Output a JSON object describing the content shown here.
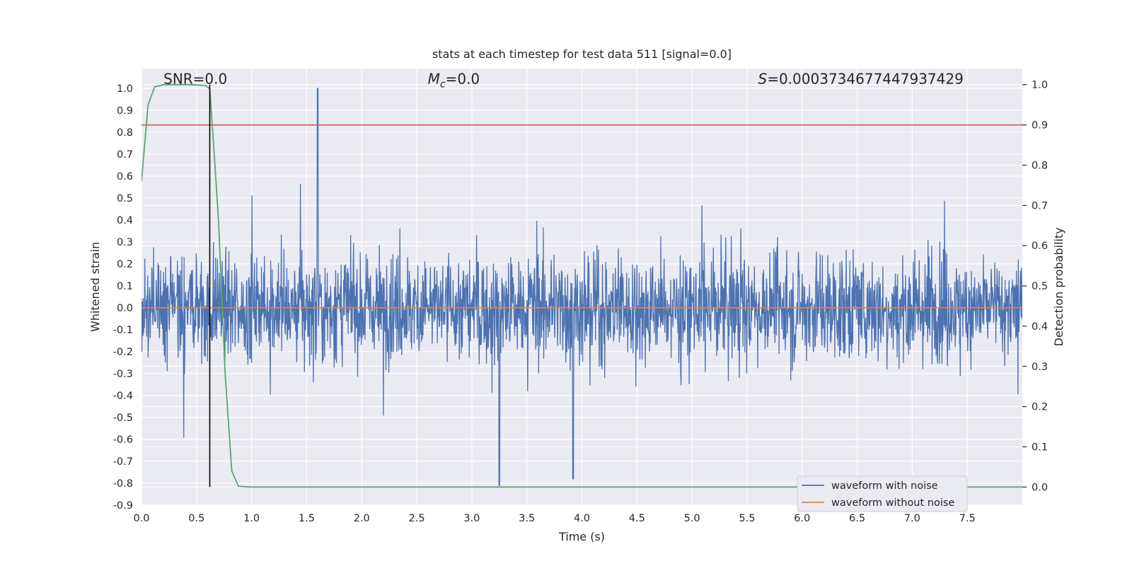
{
  "chart_data": {
    "type": "line",
    "title": "stats at each timestep for test data 511 [signal=0.0]",
    "xlabel": "Time (s)",
    "ylabel_left": "Whitened strain",
    "ylabel_right": "Detection probability",
    "xlim": [
      0.0,
      8.0
    ],
    "ylim_left": [
      -0.9,
      1.09
    ],
    "ylim_right": [
      -0.045,
      1.04
    ],
    "x_ticks": [
      "0.0",
      "0.5",
      "1.0",
      "1.5",
      "2.0",
      "2.5",
      "3.0",
      "3.5",
      "4.0",
      "4.5",
      "5.0",
      "5.5",
      "6.0",
      "6.5",
      "7.0",
      "7.5"
    ],
    "y_ticks_left": [
      "-0.9",
      "-0.8",
      "-0.7",
      "-0.6",
      "-0.5",
      "-0.4",
      "-0.3",
      "-0.2",
      "-0.1",
      "0.0",
      "0.1",
      "0.2",
      "0.3",
      "0.4",
      "0.5",
      "0.6",
      "0.7",
      "0.8",
      "0.9",
      "1.0"
    ],
    "y_ticks_right": [
      "0.0",
      "0.1",
      "0.2",
      "0.3",
      "0.4",
      "0.5",
      "0.6",
      "0.7",
      "0.8",
      "0.9",
      "1.0"
    ],
    "annotations": {
      "snr": "SNR=0.0",
      "mc_symbol": "M",
      "mc_sub": "c",
      "mc_value": "=0.0",
      "s_symbol": "S",
      "s_value": "=0.0003734677447937429"
    },
    "series": [
      {
        "name": "waveform with noise",
        "axis": "left",
        "color": "#4c72b0",
        "kind": "noise",
        "amplitude_range": [
          -0.81,
          1.0
        ],
        "peaks": [
          [
            1.6,
            1.0
          ],
          [
            3.25,
            -0.81
          ],
          [
            3.92,
            -0.78
          ]
        ]
      },
      {
        "name": "waveform without noise",
        "axis": "left",
        "color": "#dd8452",
        "x": [
          0.0,
          8.0
        ],
        "y": [
          0.0,
          0.0
        ]
      },
      {
        "name": "detection probability",
        "axis": "right",
        "color": "#55a868",
        "x": [
          0.0,
          0.06,
          0.12,
          0.2,
          0.3,
          0.45,
          0.58,
          0.62,
          0.66,
          0.7,
          0.76,
          0.82,
          0.88,
          1.0,
          2.0,
          4.0,
          6.0,
          8.0
        ],
        "y": [
          0.76,
          0.95,
          0.995,
          1.0,
          1.0,
          1.0,
          0.998,
          0.99,
          0.83,
          0.66,
          0.28,
          0.04,
          0.002,
          0.0,
          0.0,
          0.0,
          0.0,
          0.0
        ]
      },
      {
        "name": "threshold",
        "axis": "right",
        "color": "#c44e52",
        "x": [
          0.0,
          8.0
        ],
        "y": [
          0.9,
          0.9
        ]
      }
    ],
    "vline": {
      "x": 0.62,
      "y_from_right": 0.0,
      "y_to_right": 1.0,
      "color": "#000000"
    },
    "legend": {
      "position": "bottom-right",
      "entries": [
        "waveform with noise",
        "waveform without noise"
      ]
    },
    "grid": true,
    "background": "#eaeaf2"
  }
}
